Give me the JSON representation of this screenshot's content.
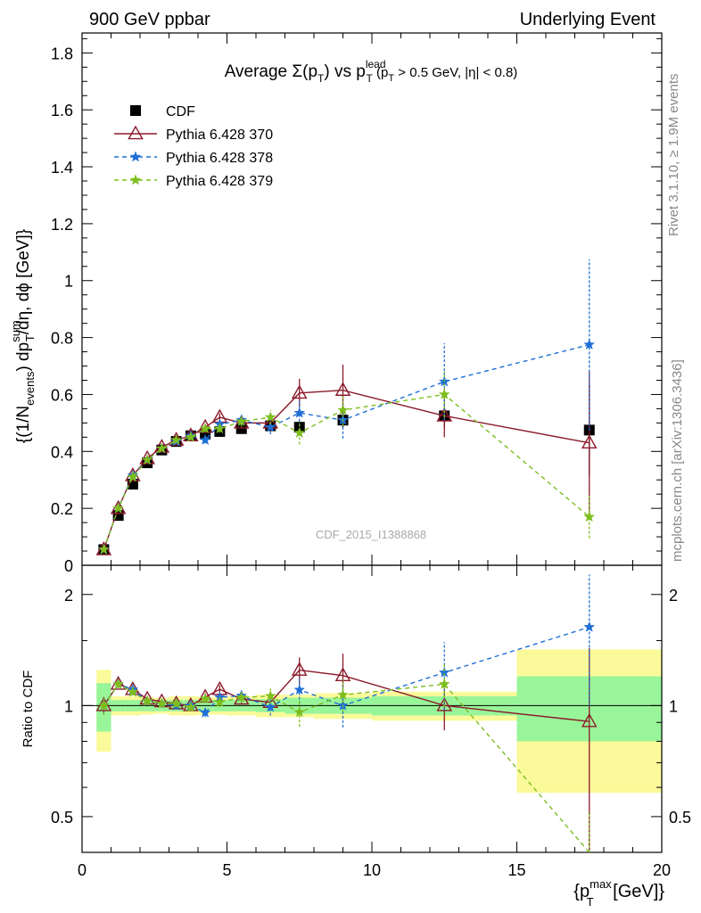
{
  "header": {
    "left": "900 GeV ppbar",
    "right": "Underlying Event"
  },
  "side": {
    "rivet": "Rivet 3.1.10, ≥ 1.9M events",
    "mcplots": "mcplots.cern.ch [arXiv:1306.3436]"
  },
  "watermark": "CDF_2015_I1388868",
  "colors": {
    "cdf": "#000000",
    "p370": "#8b1a2b",
    "p378": "#1f6fd6",
    "p379": "#7dbe1e",
    "band_inner": "#99f599",
    "band_outer": "#fafa9a"
  },
  "chart_data": {
    "type": "line",
    "title_parts": {
      "a": "Average Σ(p",
      "a_sub": "T",
      "b": ") vs p",
      "b_sup": "lead",
      "b_sub": "T",
      "c": " (p",
      "c_sub": "T",
      "d": " > 0.5 GeV, |η| < 0.8)"
    },
    "xlabel": {
      "pre": "{p",
      "sup": "max",
      "sub": "T",
      "post": " [GeV]}"
    },
    "ylabel": {
      "p1": "{(1/N",
      "p1_sub": "events",
      "p2": ") dp",
      "p2_sup": "sum",
      "p2_sub": "T",
      "p3": "/dη, dϕ [GeV]}"
    },
    "ratio_ylabel": "Ratio to CDF",
    "xlim": [
      0,
      20
    ],
    "ylim": [
      0,
      1.87
    ],
    "ratio_ylim": [
      0.4,
      2.4
    ],
    "x_ticks": [
      "0",
      "5",
      "10",
      "15",
      "20"
    ],
    "y_ticks": [
      "0",
      "0.2",
      "0.4",
      "0.6",
      "0.8",
      "1",
      "1.2",
      "1.4",
      "1.6",
      "1.8"
    ],
    "ratio_ticks": [
      "0.5",
      "1",
      "2"
    ],
    "legend_position": "top-left",
    "x": [
      0.75,
      1.25,
      1.75,
      2.25,
      2.75,
      3.25,
      3.75,
      4.25,
      4.75,
      5.5,
      6.5,
      7.5,
      9.0,
      12.5,
      17.5
    ],
    "x_edges": [
      0.5,
      1.0,
      1.5,
      2.0,
      2.5,
      3.0,
      3.5,
      4.0,
      4.5,
      5.0,
      6.0,
      7.0,
      8.0,
      10.0,
      15.0,
      20.0
    ],
    "series": [
      {
        "name": "CDF",
        "style": "data",
        "values": [
          0.055,
          0.175,
          0.285,
          0.36,
          0.405,
          0.435,
          0.455,
          0.46,
          0.47,
          0.48,
          0.49,
          0.485,
          0.51,
          0.525,
          0.475
        ],
        "errors": [
          0.004,
          0.006,
          0.008,
          0.01,
          0.01,
          0.012,
          0.012,
          0.013,
          0.013,
          0.014,
          0.016,
          0.02,
          0.025,
          0.04,
          0.16
        ],
        "band_inner": [
          0.15,
          0.035,
          0.035,
          0.035,
          0.035,
          0.035,
          0.035,
          0.035,
          0.035,
          0.035,
          0.04,
          0.05,
          0.05,
          0.06,
          0.2
        ],
        "band_outer": [
          0.25,
          0.06,
          0.06,
          0.055,
          0.05,
          0.06,
          0.06,
          0.055,
          0.055,
          0.06,
          0.07,
          0.07,
          0.08,
          0.09,
          0.42
        ]
      },
      {
        "name": "Pythia 6.428 370",
        "style": "solid-triangle",
        "values": [
          0.055,
          0.2,
          0.315,
          0.375,
          0.415,
          0.44,
          0.455,
          0.485,
          0.52,
          0.5,
          0.5,
          0.605,
          0.615,
          0.525,
          0.43
        ],
        "errors": [
          0.003,
          0.005,
          0.006,
          0.007,
          0.008,
          0.009,
          0.01,
          0.012,
          0.014,
          0.016,
          0.022,
          0.05,
          0.09,
          0.075,
          0.25
        ]
      },
      {
        "name": "Pythia 6.428 378",
        "style": "dashed-star",
        "values": [
          0.055,
          0.2,
          0.315,
          0.37,
          0.41,
          0.435,
          0.455,
          0.44,
          0.495,
          0.51,
          0.485,
          0.535,
          0.51,
          0.645,
          0.775
        ],
        "errors": [
          0.003,
          0.005,
          0.006,
          0.007,
          0.008,
          0.009,
          0.01,
          0.012,
          0.015,
          0.018,
          0.025,
          0.045,
          0.065,
          0.135,
          0.3
        ]
      },
      {
        "name": "Pythia 6.428 379",
        "style": "dashed-star",
        "values": [
          0.055,
          0.2,
          0.31,
          0.37,
          0.41,
          0.44,
          0.45,
          0.48,
          0.48,
          0.505,
          0.52,
          0.465,
          0.545,
          0.6,
          0.17
        ],
        "errors": [
          0.003,
          0.005,
          0.006,
          0.007,
          0.008,
          0.009,
          0.01,
          0.012,
          0.014,
          0.017,
          0.025,
          0.04,
          0.055,
          0.08,
          0.075
        ]
      }
    ]
  }
}
